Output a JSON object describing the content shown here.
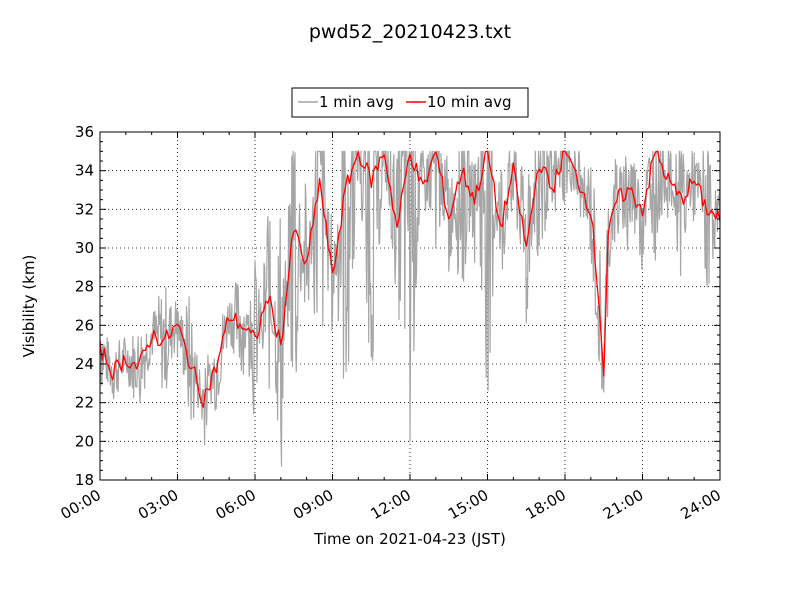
{
  "chart_data": {
    "type": "line",
    "title": "pwd52_20210423.txt",
    "xlabel": "Time on 2021-04-23 (JST)",
    "ylabel": "Visibility (km)",
    "x_tick_labels": [
      "00:00",
      "03:00",
      "06:00",
      "09:00",
      "12:00",
      "15:00",
      "18:00",
      "21:00",
      "24:00"
    ],
    "y_ticks": [
      18,
      20,
      22,
      24,
      26,
      28,
      30,
      32,
      34,
      36
    ],
    "xlim": [
      "00:00",
      "24:00"
    ],
    "ylim": [
      18,
      36
    ],
    "grid": true,
    "legend_position": "top-center",
    "x": [
      "00:00",
      "00:30",
      "01:00",
      "01:30",
      "02:00",
      "02:30",
      "03:00",
      "03:30",
      "04:00",
      "04:30",
      "05:00",
      "05:30",
      "06:00",
      "06:30",
      "07:00",
      "07:30",
      "08:00",
      "08:30",
      "09:00",
      "09:30",
      "10:00",
      "10:30",
      "11:00",
      "11:30",
      "12:00",
      "12:30",
      "13:00",
      "13:30",
      "14:00",
      "14:30",
      "15:00",
      "15:30",
      "16:00",
      "16:30",
      "17:00",
      "17:30",
      "18:00",
      "18:30",
      "19:00",
      "19:20",
      "19:30",
      "19:40",
      "20:00",
      "20:30",
      "21:00",
      "21:30",
      "22:00",
      "22:30",
      "23:00",
      "23:30",
      "24:00"
    ],
    "series": [
      {
        "name": "1 min avg",
        "color": "#a6a6a6",
        "values": [
          26.0,
          23.0,
          24.5,
          22.5,
          25.5,
          23.0,
          27.0,
          21.0,
          24.0,
          22.5,
          26.5,
          24.0,
          29.0,
          22.0,
          33.0,
          21.0,
          34.0,
          22.5,
          32.0,
          20.5,
          35.0,
          23.0,
          35.0,
          28.0,
          20.0,
          35.0,
          30.0,
          35.0,
          27.0,
          35.0,
          22.0,
          35.0,
          30.0,
          35.0,
          29.0,
          35.0,
          33.0,
          35.0,
          30.0,
          24.0,
          22.0,
          28.0,
          35.0,
          29.0,
          35.0,
          30.0,
          35.0,
          29.0,
          35.0,
          28.0,
          33.0
        ],
        "range_min": 18.5,
        "range_max": 35.0
      },
      {
        "name": "10 min avg",
        "color": "#ff0000",
        "values": [
          24.8,
          23.6,
          24.3,
          23.8,
          25.5,
          25.2,
          26.0,
          24.0,
          22.2,
          23.8,
          26.5,
          26.0,
          25.2,
          27.5,
          25.0,
          31.0,
          29.0,
          33.5,
          28.5,
          33.0,
          35.0,
          33.5,
          35.0,
          31.0,
          35.0,
          33.0,
          35.0,
          31.5,
          34.0,
          32.5,
          35.0,
          31.0,
          34.0,
          30.0,
          34.5,
          33.0,
          35.0,
          33.5,
          32.0,
          27.0,
          23.5,
          30.5,
          32.5,
          33.0,
          32.0,
          35.0,
          33.5,
          32.5,
          33.5,
          32.0,
          31.5
        ]
      }
    ]
  }
}
